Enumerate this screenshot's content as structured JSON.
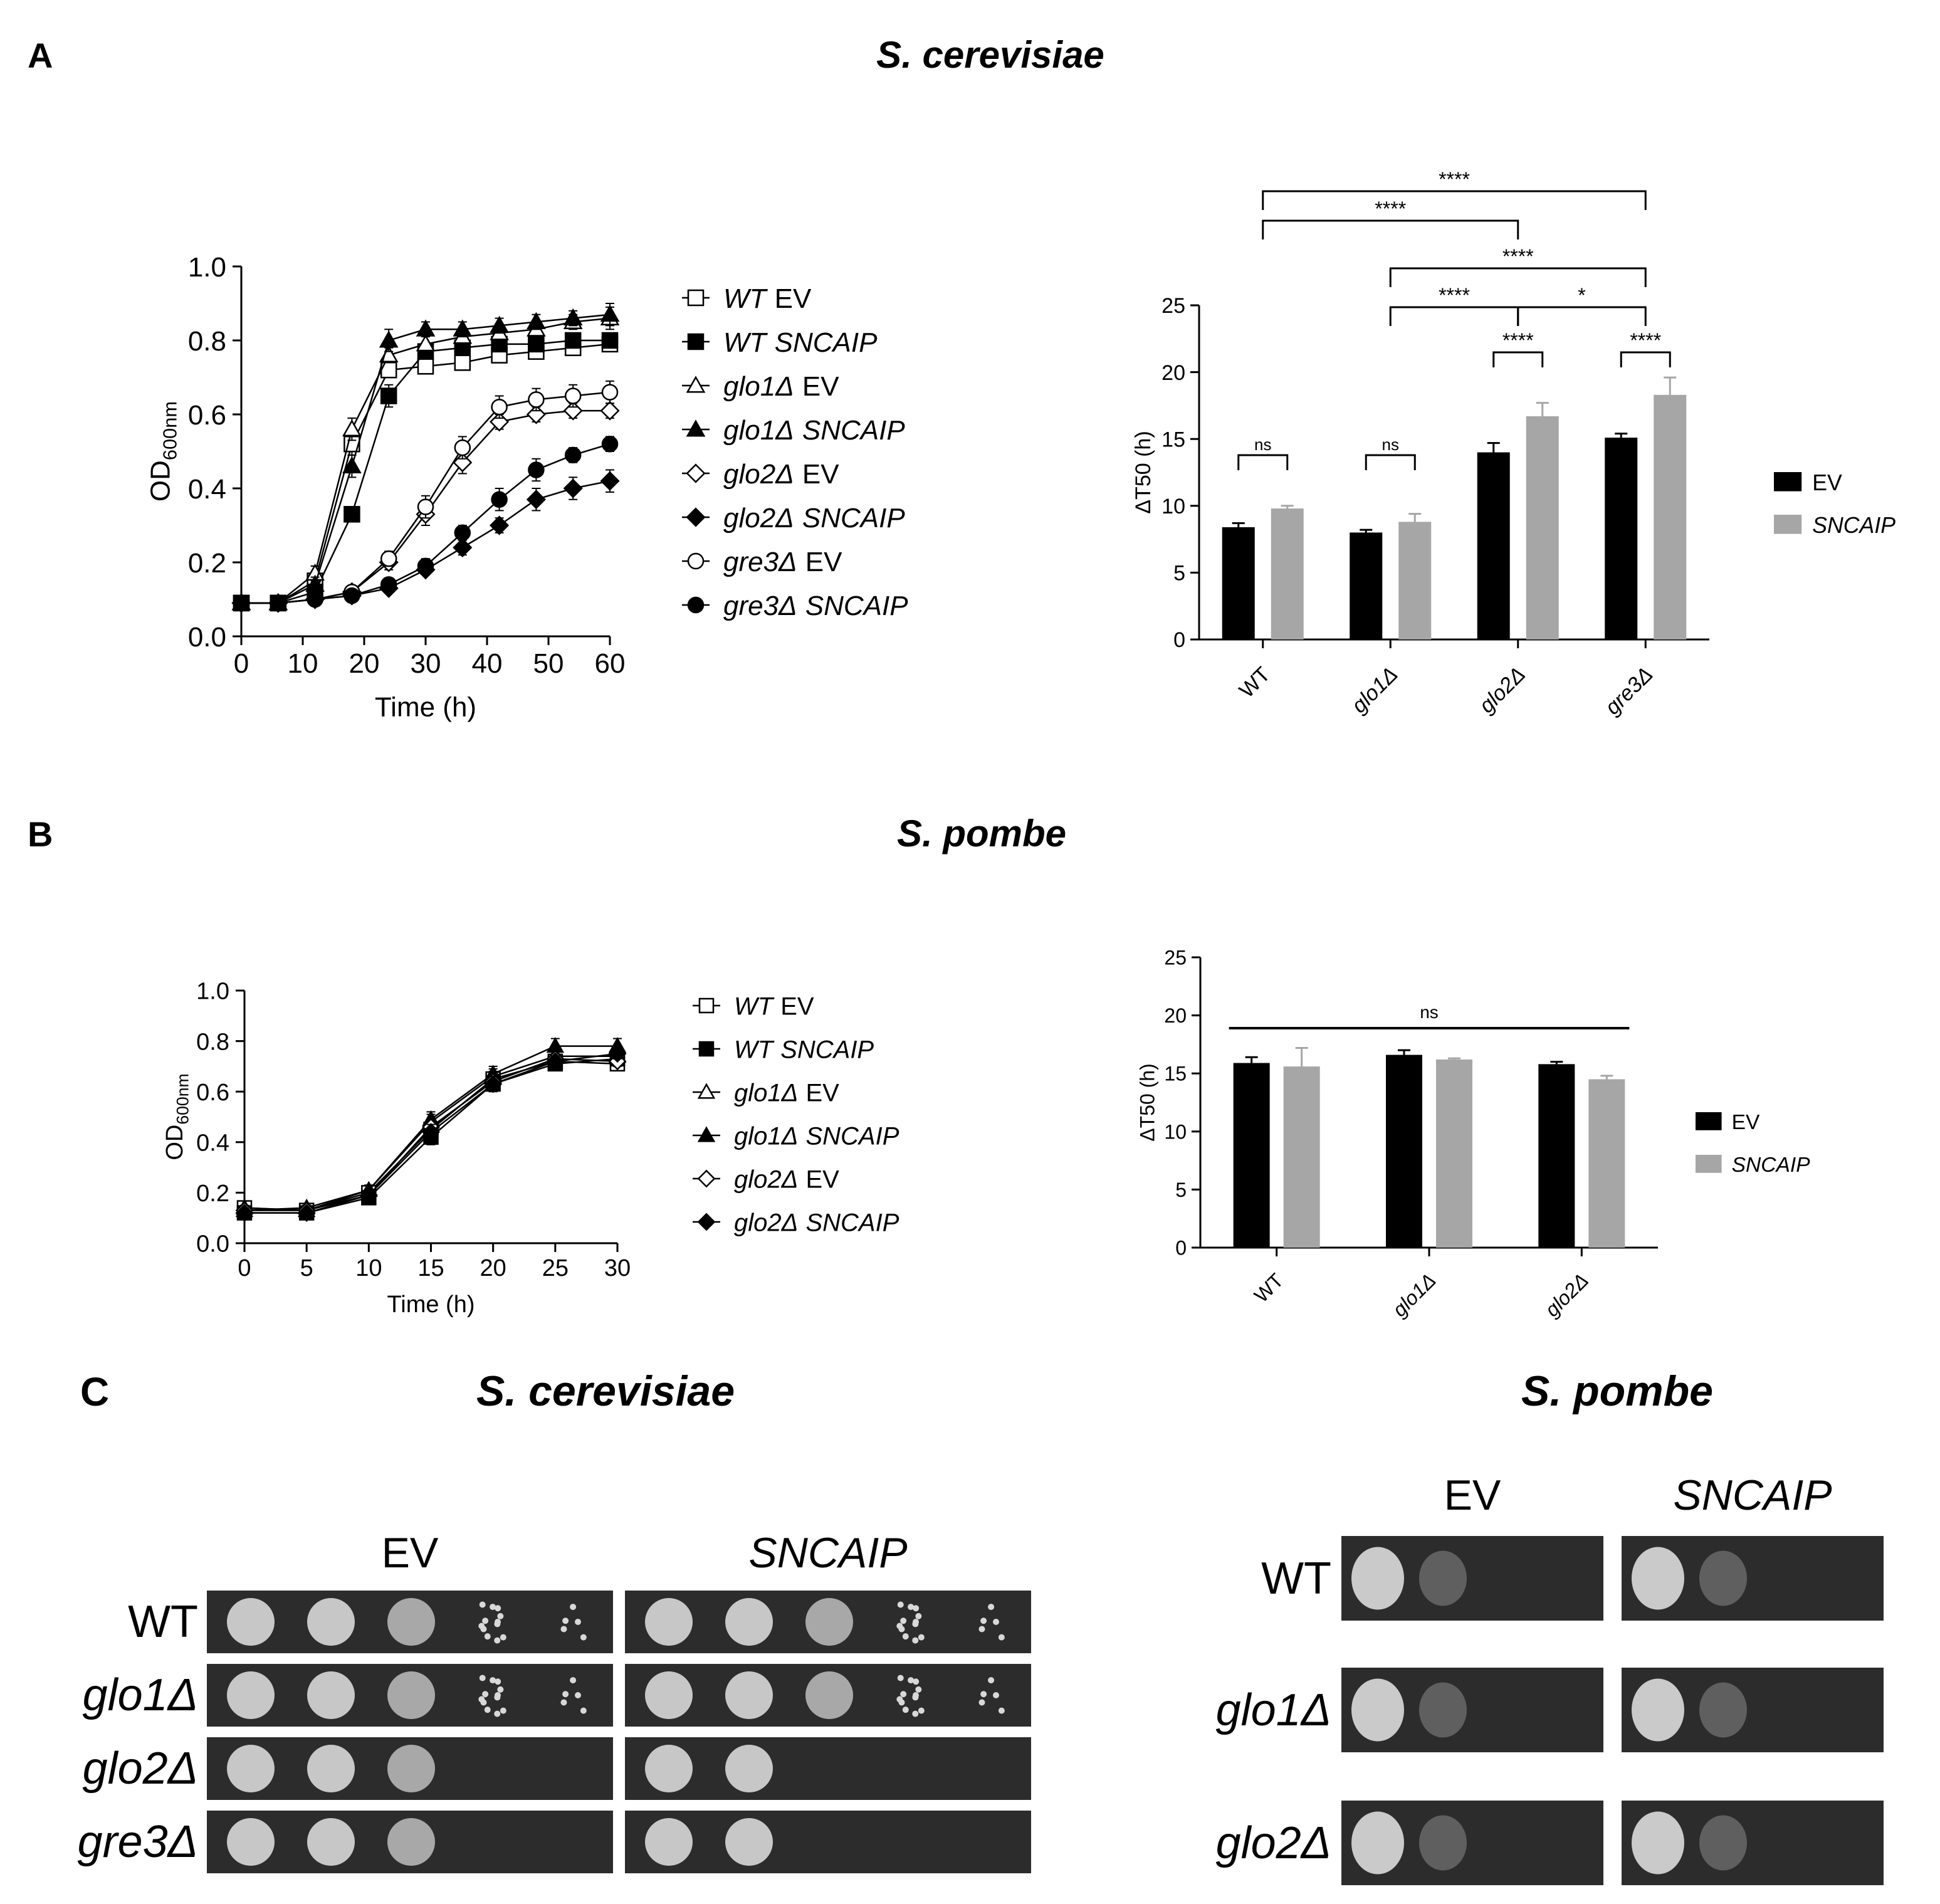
{
  "colors": {
    "ev": "#000000",
    "sncaip": "#a6a6a6",
    "plate_bg": "#2c2c2c",
    "colony": "#d8d8d8"
  },
  "panels": {
    "A": {
      "letter": "A",
      "organism": "S. cerevisiae",
      "growth": {
        "ylabel_main": "OD",
        "ylabel_sub": "600nm",
        "xlabel": "Time (h)",
        "ylim": [
          0,
          1.0
        ],
        "xlim": [
          0,
          60
        ],
        "yticks": [
          "0.0",
          "0.2",
          "0.4",
          "0.6",
          "0.8",
          "1.0"
        ],
        "xticks": [
          "0",
          "10",
          "20",
          "30",
          "40",
          "50",
          "60"
        ]
      },
      "legend": [
        {
          "strain": "WT",
          "construct": "EV",
          "italic_construct": false,
          "icon": "open-square-icon"
        },
        {
          "strain": "WT",
          "construct": "SNCAIP",
          "italic_construct": true,
          "icon": "filled-square-icon"
        },
        {
          "strain": "glo1Δ",
          "construct": "EV",
          "italic_construct": false,
          "icon": "open-triangle-icon"
        },
        {
          "strain": "glo1Δ",
          "construct": "SNCAIP",
          "italic_construct": true,
          "icon": "filled-triangle-icon"
        },
        {
          "strain": "glo2Δ",
          "construct": "EV",
          "italic_construct": false,
          "icon": "open-diamond-icon"
        },
        {
          "strain": "glo2Δ",
          "construct": "SNCAIP",
          "italic_construct": true,
          "icon": "filled-diamond-icon"
        },
        {
          "strain": "gre3Δ",
          "construct": "EV",
          "italic_construct": false,
          "icon": "open-circle-icon"
        },
        {
          "strain": "gre3Δ",
          "construct": "SNCAIP",
          "italic_construct": true,
          "icon": "filled-circle-icon"
        }
      ],
      "bar": {
        "ylabel": "ΔT50 (h)",
        "ylim": [
          0,
          25
        ],
        "yticks": [
          "0",
          "5",
          "10",
          "15",
          "20",
          "25"
        ],
        "categories": [
          "WT",
          "glo1Δ",
          "glo2Δ",
          "gre3Δ"
        ],
        "legend": [
          "EV",
          "SNCAIP"
        ],
        "significance": [
          "ns",
          "ns",
          "****",
          "****",
          "****",
          "*",
          "****",
          "****",
          "****"
        ]
      }
    },
    "B": {
      "letter": "B",
      "organism": "S. pombe",
      "growth": {
        "ylabel_main": "OD",
        "ylabel_sub": "600nm",
        "xlabel": "Time (h)",
        "ylim": [
          0,
          1.0
        ],
        "xlim": [
          0,
          30
        ],
        "yticks": [
          "0.0",
          "0.2",
          "0.4",
          "0.6",
          "0.8",
          "1.0"
        ],
        "xticks": [
          "0",
          "5",
          "10",
          "15",
          "20",
          "25",
          "30"
        ]
      },
      "legend": [
        {
          "strain": "WT",
          "construct": "EV",
          "italic_construct": false,
          "icon": "open-square-icon"
        },
        {
          "strain": "WT",
          "construct": "SNCAIP",
          "italic_construct": true,
          "icon": "filled-square-icon"
        },
        {
          "strain": "glo1Δ",
          "construct": "EV",
          "italic_construct": false,
          "icon": "open-triangle-icon"
        },
        {
          "strain": "glo1Δ",
          "construct": "SNCAIP",
          "italic_construct": true,
          "icon": "filled-triangle-icon"
        },
        {
          "strain": "glo2Δ",
          "construct": "EV",
          "italic_construct": false,
          "icon": "open-diamond-icon"
        },
        {
          "strain": "glo2Δ",
          "construct": "SNCAIP",
          "italic_construct": true,
          "icon": "filled-diamond-icon"
        }
      ],
      "bar": {
        "ylabel": "ΔT50 (h)",
        "ylim": [
          0,
          25
        ],
        "yticks": [
          "0",
          "5",
          "10",
          "15",
          "20",
          "25"
        ],
        "categories": [
          "WT",
          "glo1Δ",
          "glo2Δ"
        ],
        "legend": [
          "EV",
          "SNCAIP"
        ],
        "significance": [
          "ns"
        ]
      }
    },
    "C": {
      "letter": "C",
      "left_organism": "S. cerevisiae",
      "right_organism": "S. pombe",
      "column_labels": [
        "EV",
        "SNCAIP"
      ],
      "cerevisiae_rows": [
        "WT",
        "glo1Δ",
        "glo2Δ",
        "gre3Δ"
      ],
      "pombe_rows": [
        "WT",
        "glo1Δ",
        "glo2Δ"
      ],
      "cerevisiae_growth_spots": [
        [
          5,
          5,
          5,
          5
        ],
        [
          5,
          5,
          5,
          5
        ],
        [
          3,
          2,
          1,
          1
        ],
        [
          3,
          2,
          1,
          1
        ]
      ],
      "pombe_growth_spots": [
        [
          2,
          2,
          2
        ],
        [
          2,
          2,
          2
        ],
        [
          2,
          2,
          2
        ]
      ]
    }
  },
  "chart_data": [
    {
      "id": "A-growth",
      "type": "line",
      "title": "",
      "xlabel": "Time (h)",
      "ylabel": "OD600nm",
      "xlim": [
        0,
        60
      ],
      "ylim": [
        0,
        1.0
      ],
      "x": [
        0,
        6,
        12,
        18,
        24,
        30,
        36,
        42,
        48,
        54,
        60
      ],
      "series": [
        {
          "name": "WT EV",
          "marker": "square",
          "filled": false,
          "values": [
            0.09,
            0.09,
            0.15,
            0.52,
            0.72,
            0.73,
            0.74,
            0.76,
            0.77,
            0.78,
            0.79
          ],
          "errors": [
            0.01,
            0.01,
            0.02,
            0.03,
            0.02,
            0.02,
            0.02,
            0.02,
            0.02,
            0.02,
            0.02
          ]
        },
        {
          "name": "WT SNCAIP",
          "marker": "square",
          "filled": true,
          "values": [
            0.09,
            0.09,
            0.12,
            0.33,
            0.65,
            0.77,
            0.78,
            0.79,
            0.79,
            0.8,
            0.8
          ],
          "errors": [
            0.01,
            0.01,
            0.02,
            0.02,
            0.03,
            0.02,
            0.02,
            0.02,
            0.02,
            0.02,
            0.02
          ]
        },
        {
          "name": "glo1Δ EV",
          "marker": "triangle",
          "filled": false,
          "values": [
            0.09,
            0.09,
            0.17,
            0.56,
            0.76,
            0.79,
            0.81,
            0.82,
            0.83,
            0.85,
            0.86
          ],
          "errors": [
            0.01,
            0.01,
            0.02,
            0.03,
            0.02,
            0.02,
            0.02,
            0.02,
            0.02,
            0.02,
            0.03
          ]
        },
        {
          "name": "glo1Δ SNCAIP",
          "marker": "triangle",
          "filled": true,
          "values": [
            0.09,
            0.09,
            0.14,
            0.46,
            0.8,
            0.83,
            0.83,
            0.84,
            0.85,
            0.86,
            0.87
          ],
          "errors": [
            0.01,
            0.01,
            0.02,
            0.03,
            0.03,
            0.02,
            0.02,
            0.02,
            0.02,
            0.02,
            0.03
          ]
        },
        {
          "name": "glo2Δ EV",
          "marker": "diamond",
          "filled": false,
          "values": [
            0.09,
            0.09,
            0.1,
            0.12,
            0.2,
            0.33,
            0.47,
            0.58,
            0.6,
            0.61,
            0.61
          ],
          "errors": [
            0.01,
            0.01,
            0.01,
            0.01,
            0.02,
            0.03,
            0.03,
            0.02,
            0.02,
            0.02,
            0.02
          ]
        },
        {
          "name": "glo2Δ SNCAIP",
          "marker": "diamond",
          "filled": true,
          "values": [
            0.09,
            0.09,
            0.1,
            0.11,
            0.13,
            0.18,
            0.24,
            0.3,
            0.37,
            0.4,
            0.42
          ],
          "errors": [
            0.01,
            0.01,
            0.01,
            0.01,
            0.01,
            0.01,
            0.02,
            0.02,
            0.03,
            0.03,
            0.03
          ]
        },
        {
          "name": "gre3Δ EV",
          "marker": "circle",
          "filled": false,
          "values": [
            0.09,
            0.09,
            0.1,
            0.12,
            0.21,
            0.35,
            0.51,
            0.62,
            0.64,
            0.65,
            0.66
          ],
          "errors": [
            0.01,
            0.01,
            0.01,
            0.01,
            0.02,
            0.03,
            0.03,
            0.03,
            0.03,
            0.03,
            0.03
          ]
        },
        {
          "name": "gre3Δ SNCAIP",
          "marker": "circle",
          "filled": true,
          "values": [
            0.09,
            0.09,
            0.1,
            0.11,
            0.14,
            0.19,
            0.28,
            0.37,
            0.45,
            0.49,
            0.52
          ],
          "errors": [
            0.01,
            0.01,
            0.01,
            0.01,
            0.01,
            0.02,
            0.02,
            0.03,
            0.03,
            0.02,
            0.02
          ]
        }
      ]
    },
    {
      "id": "A-bar",
      "type": "bar",
      "title": "",
      "ylabel": "ΔT50 (h)",
      "ylim": [
        0,
        25
      ],
      "categories": [
        "WT",
        "glo1Δ",
        "glo2Δ",
        "gre3Δ"
      ],
      "series": [
        {
          "name": "EV",
          "values": [
            8.4,
            8.0,
            14.0,
            15.1
          ],
          "errors": [
            0.3,
            0.2,
            0.7,
            0.3
          ]
        },
        {
          "name": "SNCAIP",
          "values": [
            9.8,
            8.8,
            16.7,
            18.3
          ],
          "errors": [
            0.2,
            0.6,
            1.0,
            1.3
          ]
        }
      ],
      "comparisons": [
        {
          "from": "WT EV",
          "to": "WT SNCAIP",
          "label": "ns"
        },
        {
          "from": "glo1Δ EV",
          "to": "glo1Δ SNCAIP",
          "label": "ns"
        },
        {
          "from": "glo2Δ EV",
          "to": "glo2Δ SNCAIP",
          "label": "****"
        },
        {
          "from": "gre3Δ EV",
          "to": "gre3Δ SNCAIP",
          "label": "****"
        },
        {
          "from": "glo1Δ",
          "to": "glo2Δ",
          "label": "****"
        },
        {
          "from": "glo2Δ",
          "to": "gre3Δ",
          "label": "*"
        },
        {
          "from": "glo1Δ",
          "to": "gre3Δ",
          "label": "****"
        },
        {
          "from": "WT",
          "to": "glo2Δ",
          "label": "****"
        },
        {
          "from": "WT",
          "to": "gre3Δ",
          "label": "****"
        }
      ]
    },
    {
      "id": "B-growth",
      "type": "line",
      "title": "",
      "xlabel": "Time (h)",
      "ylabel": "OD600nm",
      "xlim": [
        0,
        30
      ],
      "ylim": [
        0,
        1.0
      ],
      "x": [
        0,
        5,
        10,
        15,
        20,
        25,
        30
      ],
      "series": [
        {
          "name": "WT EV",
          "marker": "square",
          "filled": false,
          "values": [
            0.14,
            0.13,
            0.2,
            0.45,
            0.65,
            0.72,
            0.71
          ],
          "errors": [
            0.01,
            0.01,
            0.02,
            0.03,
            0.03,
            0.02,
            0.02
          ]
        },
        {
          "name": "WT SNCAIP",
          "marker": "square",
          "filled": true,
          "values": [
            0.12,
            0.12,
            0.18,
            0.42,
            0.63,
            0.71,
            0.73
          ],
          "errors": [
            0.01,
            0.01,
            0.02,
            0.03,
            0.03,
            0.02,
            0.02
          ]
        },
        {
          "name": "glo1Δ EV",
          "marker": "triangle",
          "filled": false,
          "values": [
            0.14,
            0.13,
            0.21,
            0.48,
            0.66,
            0.74,
            0.74
          ],
          "errors": [
            0.01,
            0.01,
            0.02,
            0.03,
            0.03,
            0.02,
            0.02
          ]
        },
        {
          "name": "glo1Δ SNCAIP",
          "marker": "triangle",
          "filled": true,
          "values": [
            0.13,
            0.14,
            0.21,
            0.49,
            0.67,
            0.78,
            0.78
          ],
          "errors": [
            0.01,
            0.01,
            0.02,
            0.03,
            0.03,
            0.03,
            0.03
          ]
        },
        {
          "name": "glo2Δ EV",
          "marker": "diamond",
          "filled": false,
          "values": [
            0.13,
            0.13,
            0.19,
            0.46,
            0.64,
            0.73,
            0.72
          ],
          "errors": [
            0.01,
            0.01,
            0.02,
            0.03,
            0.03,
            0.02,
            0.02
          ]
        },
        {
          "name": "glo2Δ SNCAIP",
          "marker": "diamond",
          "filled": true,
          "values": [
            0.12,
            0.12,
            0.19,
            0.44,
            0.63,
            0.72,
            0.75
          ],
          "errors": [
            0.01,
            0.01,
            0.02,
            0.03,
            0.03,
            0.02,
            0.02
          ]
        }
      ]
    },
    {
      "id": "B-bar",
      "type": "bar",
      "title": "",
      "ylabel": "ΔT50 (h)",
      "ylim": [
        0,
        25
      ],
      "categories": [
        "WT",
        "glo1Δ",
        "glo2Δ"
      ],
      "series": [
        {
          "name": "EV",
          "values": [
            15.9,
            16.6,
            15.8
          ],
          "errors": [
            0.5,
            0.4,
            0.2
          ]
        },
        {
          "name": "SNCAIP",
          "values": [
            15.6,
            16.2,
            14.5
          ],
          "errors": [
            1.6,
            0.1,
            0.3
          ]
        }
      ],
      "comparisons": [
        {
          "from": "all",
          "to": "all",
          "label": "ns"
        }
      ]
    }
  ]
}
